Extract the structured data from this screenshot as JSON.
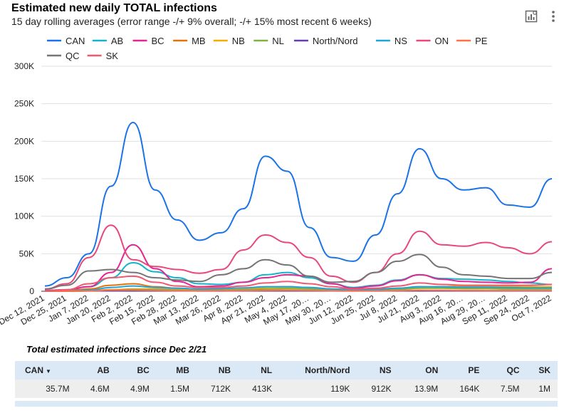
{
  "header": {
    "title": "Estimated new daily TOTAL infections",
    "subtitle": "15 day rolling averages (error range -/+ 9% overall; -/+ 15% most recent 6 weeks)"
  },
  "toolbar": {
    "chart_icon": "insights-chart-icon",
    "menu_icon": "more-vertical-icon"
  },
  "chart_data": {
    "type": "line",
    "title": "Estimated new daily TOTAL infections",
    "ylim": [
      0,
      300000
    ],
    "yticks": [
      0,
      50000,
      100000,
      150000,
      200000,
      250000,
      300000
    ],
    "ytick_labels": [
      "0",
      "50K",
      "100K",
      "150K",
      "200K",
      "250K",
      "300K"
    ],
    "x": [
      "Dec 12, 2021",
      "Dec 25, 2021",
      "Jan 7, 2022",
      "Jan 20, 2022",
      "Feb 2, 2022",
      "Feb 15, 2022",
      "Feb 28, 2022",
      "Mar 13, 2022",
      "Mar 26, 2022",
      "Apr 8, 2022",
      "Apr 21, 2022",
      "May 4, 2022",
      "May 17, 20…",
      "May 30, 20…",
      "Jun 12, 2022",
      "Jun 25, 2022",
      "Jul 8, 2022",
      "Jul 21, 2022",
      "Aug 3, 2022",
      "Aug 16, 20…",
      "Aug 29, 20…",
      "Sep 11, 2022",
      "Sep 24, 2022",
      "Oct 7, 2022"
    ],
    "legend_position": "top",
    "series": [
      {
        "name": "CAN",
        "color": "#1a73e8",
        "values": [
          7000,
          18000,
          50000,
          140000,
          225000,
          135000,
          95000,
          68000,
          78000,
          110000,
          180000,
          160000,
          85000,
          45000,
          40000,
          75000,
          130000,
          190000,
          150000,
          135000,
          138000,
          115000,
          112000,
          150000
        ]
      },
      {
        "name": "AB",
        "color": "#12b5cb",
        "values": [
          1000,
          2000,
          6000,
          18000,
          38000,
          26000,
          18000,
          10000,
          9000,
          12000,
          22000,
          25000,
          18000,
          10000,
          5000,
          8000,
          15000,
          22000,
          17000,
          16000,
          15000,
          13000,
          11000,
          9000
        ]
      },
      {
        "name": "BC",
        "color": "#e52592",
        "values": [
          1000,
          2000,
          6000,
          25000,
          62000,
          30000,
          13000,
          6000,
          7000,
          12000,
          18000,
          22000,
          20000,
          10000,
          4000,
          7000,
          14000,
          22000,
          16000,
          13000,
          12000,
          11000,
          12000,
          30000
        ]
      },
      {
        "name": "MB",
        "color": "#e8710a",
        "values": [
          500,
          1000,
          3000,
          8000,
          10000,
          6000,
          4000,
          3000,
          3000,
          4000,
          5000,
          6000,
          5000,
          3000,
          2000,
          3000,
          4000,
          6000,
          5000,
          4000,
          4000,
          4000,
          4000,
          4000
        ]
      },
      {
        "name": "NB",
        "color": "#f9ab00",
        "values": [
          200,
          300,
          800,
          2000,
          3000,
          3000,
          2500,
          2000,
          2500,
          3500,
          5000,
          5000,
          4000,
          2500,
          1500,
          2000,
          3500,
          5000,
          6000,
          7000,
          7000,
          6500,
          6000,
          6000
        ]
      },
      {
        "name": "NL",
        "color": "#7cb342",
        "values": [
          100,
          200,
          500,
          1500,
          2500,
          2000,
          1500,
          1200,
          1500,
          2000,
          3000,
          3500,
          3000,
          2000,
          1000,
          1500,
          2500,
          4000,
          4000,
          3500,
          3500,
          3000,
          3000,
          3000
        ]
      },
      {
        "name": "North/Nord",
        "color": "#673ab7",
        "values": [
          100,
          200,
          300,
          600,
          900,
          700,
          500,
          400,
          400,
          500,
          700,
          800,
          700,
          500,
          300,
          400,
          600,
          800,
          700,
          600,
          600,
          500,
          500,
          500
        ]
      },
      {
        "name": "NS",
        "color": "#1aa6de",
        "values": [
          200,
          500,
          1500,
          5000,
          7000,
          5000,
          4000,
          3000,
          3500,
          4500,
          6000,
          6000,
          5000,
          3000,
          2000,
          2500,
          4000,
          6000,
          6000,
          5500,
          5500,
          5000,
          4500,
          4500
        ]
      },
      {
        "name": "ON",
        "color": "#e8487a",
        "values": [
          3000,
          10000,
          45000,
          88000,
          42000,
          33000,
          29000,
          24000,
          29000,
          55000,
          75000,
          65000,
          45000,
          20000,
          12000,
          25000,
          50000,
          80000,
          62000,
          60000,
          65000,
          58000,
          50000,
          66000
        ]
      },
      {
        "name": "PE",
        "color": "#ff7043",
        "values": [
          100,
          200,
          500,
          1500,
          1500,
          1200,
          800,
          600,
          700,
          900,
          1200,
          1300,
          1100,
          700,
          400,
          600,
          900,
          1400,
          1300,
          1100,
          1000,
          900,
          900,
          900
        ]
      },
      {
        "name": "QC",
        "color": "#757575",
        "values": [
          3000,
          8000,
          27000,
          29000,
          25000,
          18000,
          15000,
          13000,
          22000,
          30000,
          42000,
          35000,
          20000,
          12000,
          13000,
          25000,
          40000,
          49000,
          32000,
          22000,
          20000,
          17000,
          17000,
          25000
        ]
      },
      {
        "name": "SK",
        "color": "#f05a6e",
        "values": [
          500,
          2000,
          10000,
          18000,
          20000,
          12000,
          7000,
          5000,
          5000,
          7000,
          11000,
          13000,
          10000,
          6000,
          3000,
          4000,
          7000,
          11000,
          9000,
          8000,
          8000,
          8000,
          8000,
          9000
        ]
      }
    ]
  },
  "table": {
    "title": "Total estimated infections since Dec 2/21",
    "headers": [
      "CAN",
      "AB",
      "BC",
      "MB",
      "NB",
      "NL",
      "North/Nord",
      "NS",
      "ON",
      "PE",
      "QC",
      "SK"
    ],
    "values": [
      "35.7M",
      "4.6M",
      "4.9M",
      "1.5M",
      "712K",
      "413K",
      "119K",
      "912K",
      "13.9M",
      "164K",
      "7.5M",
      "1M"
    ]
  }
}
